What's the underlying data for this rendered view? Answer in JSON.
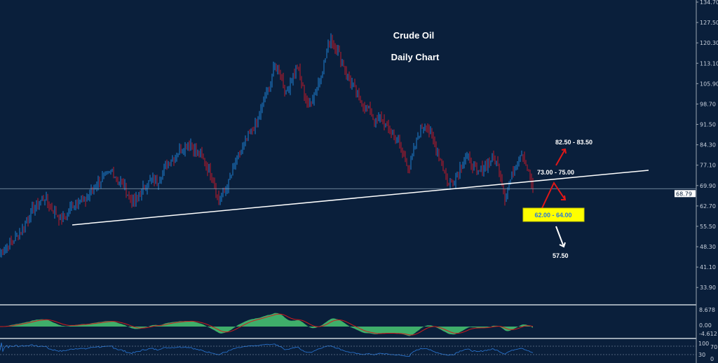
{
  "chart_data": {
    "type": "candlestick",
    "title": "Crude Oil",
    "subtitle": "Daily Chart",
    "ylim": [
      30.0,
      135.5
    ],
    "y_ticks": [
      "134.70",
      "127.50",
      "120.30",
      "113.10",
      "105.90",
      "98.70",
      "91.50",
      "84.30",
      "77.10",
      "69.90",
      "62.70",
      "55.50",
      "48.30",
      "41.10",
      "33.90"
    ],
    "last_price": 68.79,
    "last_price_label": "68.79",
    "closes": [
      46,
      48,
      50,
      52,
      55,
      58,
      62,
      64,
      66,
      62,
      60,
      58,
      60,
      63,
      65,
      64,
      67,
      70,
      72,
      73,
      75,
      72,
      70,
      66,
      64,
      67,
      70,
      72,
      71,
      75,
      78,
      80,
      82,
      84,
      85,
      82,
      80,
      76,
      72,
      64,
      68,
      72,
      78,
      82,
      86,
      90,
      93,
      100,
      105,
      112,
      110,
      102,
      108,
      112,
      104,
      98,
      102,
      108,
      115,
      122,
      118,
      114,
      108,
      105,
      100,
      98,
      96,
      92,
      94,
      90,
      88,
      85,
      80,
      76,
      84,
      90,
      92,
      86,
      82,
      76,
      70,
      72,
      76,
      80,
      78,
      74,
      76,
      78,
      80,
      76,
      66,
      72,
      78,
      82,
      76,
      68.79
    ],
    "trendline": {
      "from": 56.0,
      "to": 75.3
    },
    "annotations": {
      "target_up": "82.50 - 83.50",
      "resistance": "73.00 - 75.00",
      "support": "62.00 - 64.00",
      "target_down": "57.50"
    },
    "macd_panel": {
      "ticks": [
        "8.678",
        "0.00",
        "-4.612"
      ]
    },
    "rsi_panel": {
      "ticks": [
        "100",
        "70",
        "30",
        "0"
      ]
    },
    "colors": {
      "up": "#1e7fd0",
      "down": "#c0182a",
      "background": "#0a1f3b",
      "macd_fill": "#3fae6a",
      "macd_signal": "#d01c1c",
      "rsi_line": "#2a78d8",
      "support_box": "#ffff00",
      "support_text": "#2a78d8"
    }
  }
}
